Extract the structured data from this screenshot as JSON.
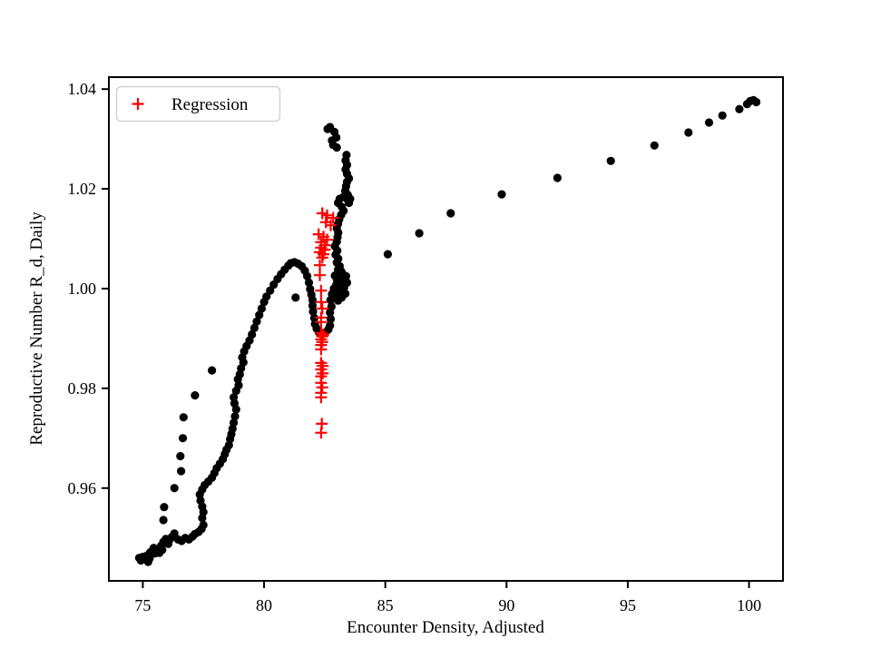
{
  "figure": {
    "background": "#ffffff",
    "legend": {
      "label": "Regression",
      "marker": "plus-marker",
      "marker_color": "#ff0000",
      "border_color": "#cccccc",
      "position": "upper left"
    }
  },
  "chart_data": {
    "type": "scatter",
    "xlabel": "Encounter Density, Adjusted",
    "ylabel": "Reproductive Number R_d, Daily",
    "xlim": [
      73.6,
      101.4
    ],
    "ylim": [
      0.9414,
      1.0424
    ],
    "x_ticks": [
      75,
      80,
      85,
      90,
      95,
      100
    ],
    "x_tick_labels": [
      "75",
      "80",
      "85",
      "90",
      "95",
      "100"
    ],
    "y_ticks": [
      0.96,
      0.98,
      1.0,
      1.02,
      1.04
    ],
    "y_tick_labels": [
      "0.96",
      "0.98",
      "1.00",
      "1.02",
      "1.04"
    ],
    "grid": false,
    "legend_position": "upper left",
    "series": [
      {
        "name": "trajectory",
        "marker": "circle",
        "color": "#000000",
        "in_legend": false,
        "points": [
          [
            74.85,
            0.946
          ],
          [
            74.92,
            0.9455
          ],
          [
            75.0,
            0.9462
          ],
          [
            75.1,
            0.9458
          ],
          [
            75.18,
            0.9465
          ],
          [
            75.22,
            0.9452
          ],
          [
            75.3,
            0.9471
          ],
          [
            75.28,
            0.9459
          ],
          [
            75.4,
            0.9475
          ],
          [
            75.5,
            0.9469
          ],
          [
            75.45,
            0.948
          ],
          [
            75.6,
            0.9477
          ],
          [
            75.68,
            0.947
          ],
          [
            75.75,
            0.9484
          ],
          [
            75.8,
            0.9476
          ],
          [
            75.85,
            0.9492
          ],
          [
            75.95,
            0.9498
          ],
          [
            76.05,
            0.9488
          ],
          [
            76.1,
            0.9496
          ],
          [
            76.2,
            0.9502
          ],
          [
            76.3,
            0.9509
          ],
          [
            76.45,
            0.9497
          ],
          [
            76.6,
            0.9494
          ],
          [
            76.75,
            0.95
          ],
          [
            76.9,
            0.9497
          ],
          [
            77.05,
            0.9503
          ],
          [
            77.15,
            0.9508
          ],
          [
            77.3,
            0.9512
          ],
          [
            77.42,
            0.9518
          ],
          [
            77.5,
            0.9526
          ],
          [
            77.45,
            0.954
          ],
          [
            77.5,
            0.9552
          ],
          [
            77.45,
            0.9563
          ],
          [
            77.38,
            0.9575
          ],
          [
            77.35,
            0.9587
          ],
          [
            77.45,
            0.9597
          ],
          [
            77.55,
            0.9606
          ],
          [
            77.7,
            0.9613
          ],
          [
            77.85,
            0.9621
          ],
          [
            77.95,
            0.963
          ],
          [
            78.05,
            0.964
          ],
          [
            78.18,
            0.9649
          ],
          [
            78.3,
            0.9658
          ],
          [
            78.38,
            0.9668
          ],
          [
            78.45,
            0.9677
          ],
          [
            78.55,
            0.9686
          ],
          [
            78.6,
            0.9698
          ],
          [
            78.65,
            0.9708
          ],
          [
            78.7,
            0.9719
          ],
          [
            78.75,
            0.9731
          ],
          [
            78.8,
            0.9744
          ],
          [
            78.85,
            0.9758
          ],
          [
            78.78,
            0.977
          ],
          [
            78.75,
            0.9782
          ],
          [
            78.85,
            0.9795
          ],
          [
            78.95,
            0.9806
          ],
          [
            78.92,
            0.9818
          ],
          [
            79.0,
            0.9828
          ],
          [
            79.05,
            0.984
          ],
          [
            79.15,
            0.9852
          ],
          [
            79.1,
            0.9862
          ],
          [
            79.18,
            0.9874
          ],
          [
            79.28,
            0.9885
          ],
          [
            75.85,
            0.9536
          ],
          [
            75.88,
            0.9562
          ],
          [
            76.3,
            0.96
          ],
          [
            76.58,
            0.9634
          ],
          [
            76.55,
            0.9664
          ],
          [
            76.65,
            0.97
          ],
          [
            76.68,
            0.9742
          ],
          [
            77.15,
            0.9786
          ],
          [
            77.85,
            0.9836
          ],
          [
            79.4,
            0.9896
          ],
          [
            79.5,
            0.9908
          ],
          [
            79.6,
            0.9921
          ],
          [
            79.7,
            0.9934
          ],
          [
            79.8,
            0.9947
          ],
          [
            79.9,
            0.996
          ],
          [
            80.0,
            0.9973
          ],
          [
            80.1,
            0.9984
          ],
          [
            80.25,
            0.9996
          ],
          [
            80.4,
            1.0008
          ],
          [
            80.55,
            1.0019
          ],
          [
            80.7,
            1.0029
          ],
          [
            80.85,
            1.0038
          ],
          [
            81.0,
            1.0046
          ],
          [
            81.1,
            1.0051
          ],
          [
            81.25,
            1.0053
          ],
          [
            81.4,
            1.005
          ],
          [
            81.55,
            1.0045
          ],
          [
            81.68,
            1.0036
          ],
          [
            81.78,
            1.0025
          ],
          [
            81.85,
            1.0012
          ],
          [
            81.9,
            0.9999
          ],
          [
            81.95,
            0.9988
          ],
          [
            82.0,
            0.9977
          ],
          [
            82.0,
            0.9966
          ],
          [
            82.02,
            0.9954
          ],
          [
            82.07,
            0.9941
          ],
          [
            82.1,
            0.9929
          ],
          [
            82.17,
            0.992
          ],
          [
            82.25,
            0.9913
          ],
          [
            82.35,
            0.9909
          ],
          [
            82.45,
            0.991
          ],
          [
            82.55,
            0.9913
          ],
          [
            82.65,
            0.9918
          ],
          [
            82.72,
            0.9926
          ],
          [
            82.75,
            0.9939
          ],
          [
            82.72,
            0.9952
          ],
          [
            82.78,
            0.9964
          ],
          [
            82.74,
            0.9977
          ],
          [
            82.8,
            0.9989
          ],
          [
            82.88,
            1.0
          ],
          [
            82.98,
            1.0008
          ],
          [
            83.1,
            1.0013
          ],
          [
            83.22,
            1.0009
          ],
          [
            83.32,
            1.0016
          ],
          [
            83.38,
            1.0025
          ],
          [
            83.25,
            1.0029
          ],
          [
            83.12,
            1.0024
          ],
          [
            83.0,
            1.0019
          ],
          [
            82.92,
            1.0026
          ],
          [
            83.05,
            1.0032
          ],
          [
            83.18,
            1.0035
          ],
          [
            83.3,
            1.0002
          ],
          [
            83.15,
            0.9996
          ],
          [
            83.0,
            0.9991
          ],
          [
            82.9,
            0.9981
          ],
          [
            83.05,
            0.9976
          ],
          [
            83.2,
            0.9982
          ],
          [
            83.35,
            0.999
          ],
          [
            83.42,
            1.0012
          ],
          [
            83.05,
            1.0038
          ],
          [
            83.12,
            1.0045
          ],
          [
            83.0,
            1.0052
          ],
          [
            83.06,
            1.006
          ],
          [
            82.95,
            1.0068
          ],
          [
            83.02,
            1.0076
          ],
          [
            82.92,
            1.0085
          ],
          [
            83.0,
            1.0094
          ],
          [
            83.03,
            1.0103
          ],
          [
            83.06,
            1.0112
          ],
          [
            83.0,
            1.0121
          ],
          [
            83.05,
            1.013
          ],
          [
            83.1,
            1.0139
          ],
          [
            83.18,
            1.0148
          ],
          [
            83.28,
            1.0156
          ],
          [
            83.2,
            1.0164
          ],
          [
            83.05,
            1.0172
          ],
          [
            83.12,
            1.018
          ],
          [
            83.28,
            1.0184
          ],
          [
            83.42,
            1.018
          ],
          [
            83.5,
            1.0172
          ],
          [
            83.55,
            1.018
          ],
          [
            83.45,
            1.0188
          ],
          [
            83.35,
            1.0196
          ],
          [
            83.38,
            1.0205
          ],
          [
            83.42,
            1.0214
          ],
          [
            83.5,
            1.0221
          ],
          [
            83.42,
            1.023
          ],
          [
            83.36,
            1.0239
          ],
          [
            83.42,
            1.0248
          ],
          [
            83.36,
            1.0257
          ],
          [
            83.4,
            1.0268
          ],
          [
            83.0,
            1.0283
          ],
          [
            82.85,
            1.0288
          ],
          [
            82.8,
            1.0297
          ],
          [
            82.98,
            1.0303
          ],
          [
            82.9,
            1.0314
          ],
          [
            82.62,
            1.032
          ],
          [
            82.72,
            1.0324
          ],
          [
            81.3,
            0.9982
          ],
          [
            85.1,
            1.0069
          ],
          [
            86.4,
            1.0111
          ],
          [
            87.7,
            1.0151
          ],
          [
            89.8,
            1.0189
          ],
          [
            92.1,
            1.0222
          ],
          [
            94.3,
            1.0256
          ],
          [
            96.1,
            1.0287
          ],
          [
            97.5,
            1.0313
          ],
          [
            98.35,
            1.0333
          ],
          [
            98.9,
            1.0347
          ],
          [
            99.6,
            1.036
          ],
          [
            99.92,
            1.037
          ],
          [
            100.05,
            1.0376
          ],
          [
            100.18,
            1.0378
          ],
          [
            100.3,
            1.0374
          ]
        ]
      },
      {
        "name": "Regression",
        "marker": "plus",
        "color": "#ff0000",
        "in_legend": true,
        "points": [
          [
            82.4,
            1.0151
          ],
          [
            82.6,
            1.0147
          ],
          [
            82.85,
            1.0142
          ],
          [
            82.55,
            1.0133
          ],
          [
            82.75,
            1.0127
          ],
          [
            82.25,
            1.0109
          ],
          [
            82.45,
            1.0104
          ],
          [
            82.6,
            1.0098
          ],
          [
            82.35,
            1.0093
          ],
          [
            82.5,
            1.0087
          ],
          [
            82.35,
            1.0082
          ],
          [
            82.5,
            1.0078
          ],
          [
            82.3,
            1.0073
          ],
          [
            82.45,
            1.0069
          ],
          [
            82.4,
            1.0062
          ],
          [
            82.3,
            1.0047
          ],
          [
            82.3,
            1.0027
          ],
          [
            82.35,
            0.9996
          ],
          [
            82.35,
            0.9973
          ],
          [
            82.4,
            0.996
          ],
          [
            82.35,
            0.9942
          ],
          [
            82.35,
            0.9933
          ],
          [
            82.35,
            0.9911
          ],
          [
            82.45,
            0.9908
          ],
          [
            82.4,
            0.9904
          ],
          [
            82.35,
            0.9898
          ],
          [
            82.4,
            0.9893
          ],
          [
            82.35,
            0.9887
          ],
          [
            82.35,
            0.9878
          ],
          [
            82.35,
            0.9851
          ],
          [
            82.42,
            0.9845
          ],
          [
            82.35,
            0.9838
          ],
          [
            82.42,
            0.983
          ],
          [
            82.35,
            0.9824
          ],
          [
            82.35,
            0.9811
          ],
          [
            82.4,
            0.9802
          ],
          [
            82.35,
            0.9791
          ],
          [
            82.35,
            0.9782
          ],
          [
            82.38,
            0.9729
          ],
          [
            82.35,
            0.9711
          ]
        ]
      }
    ]
  }
}
